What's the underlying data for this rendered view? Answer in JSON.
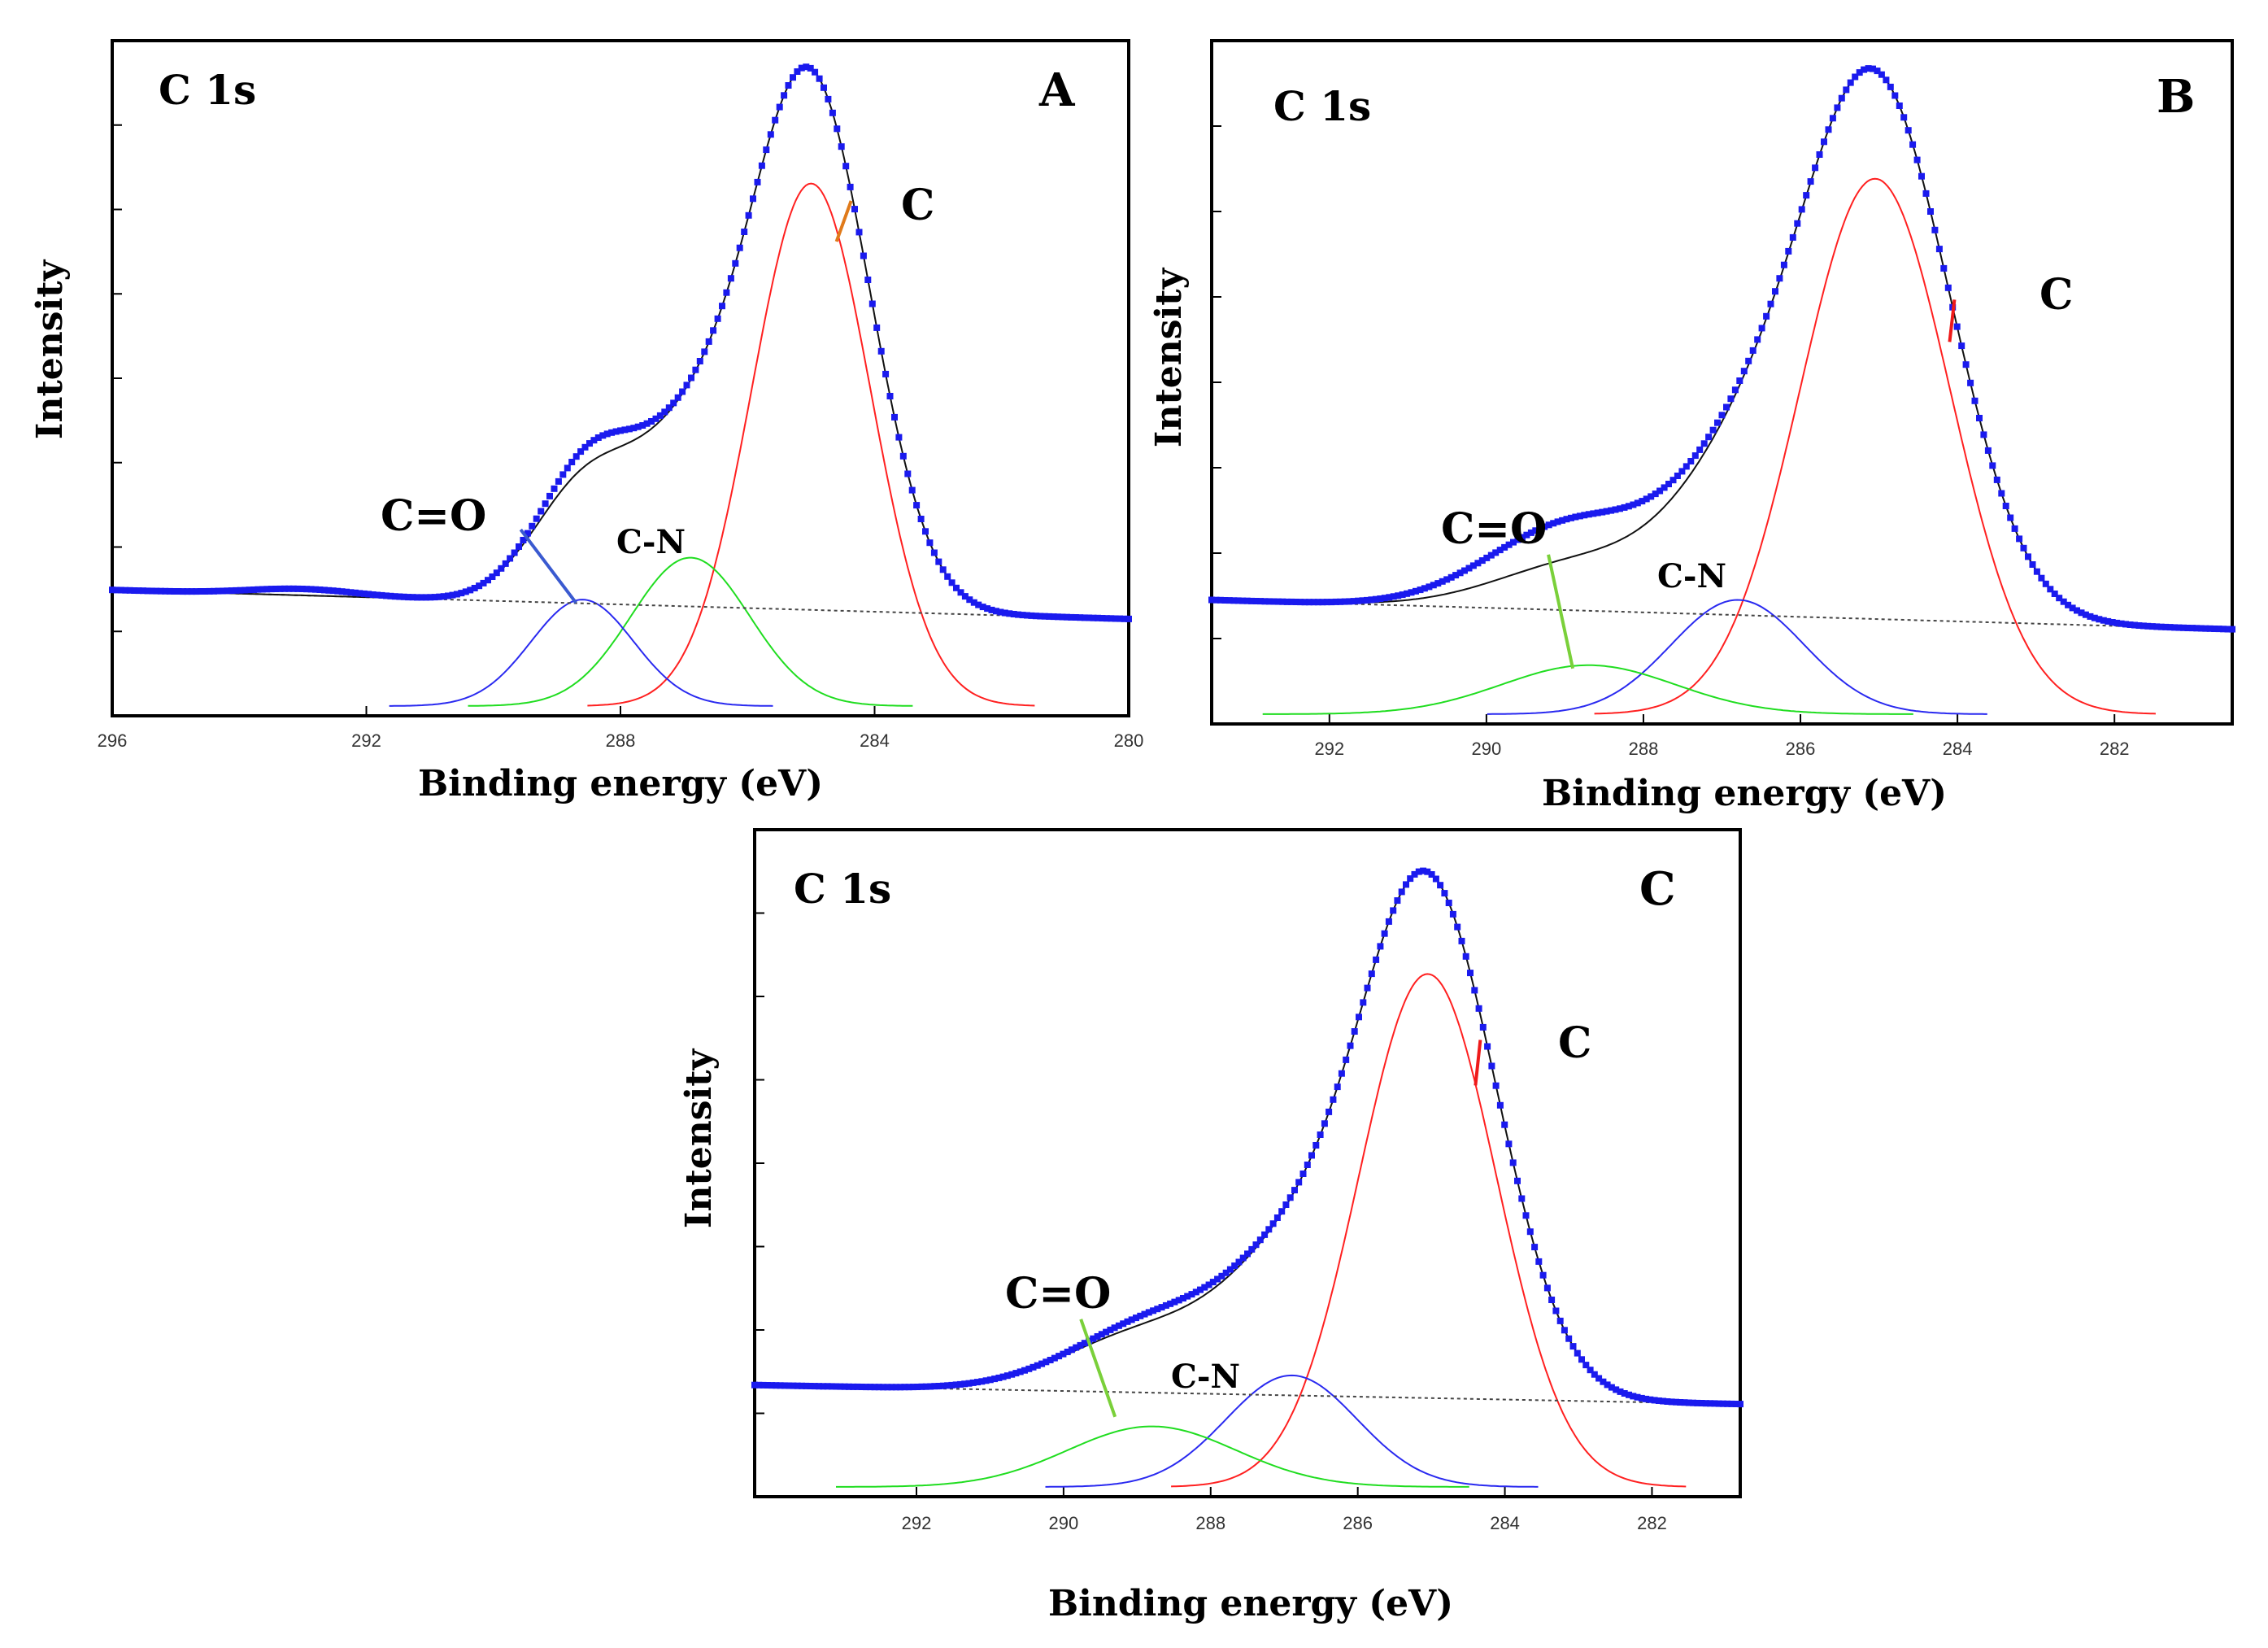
{
  "chart_data": [
    {
      "id": "A",
      "type": "line",
      "panel_label": "A",
      "spectrum_label": "C 1s",
      "xlabel": "Binding energy (eV)",
      "ylabel": "Intensity",
      "xlim": [
        296,
        280
      ],
      "x_ticks": [
        296,
        292,
        288,
        284,
        280
      ],
      "ylim": [
        0,
        1
      ],
      "background": {
        "start": 0.18,
        "end": 0.135
      },
      "baseline_high_x": 287,
      "exp_shoulder": {
        "center": 288.4,
        "width": 0.9,
        "amp": 0.03
      },
      "exp_bump": {
        "center": 293.0,
        "width": 1.2,
        "amp": 0.01
      },
      "series": [
        {
          "name": "C",
          "color": "#ff2020",
          "center": 285.0,
          "fwhm": 2.2,
          "amp": 0.81
        },
        {
          "name": "C-N",
          "color": "#20dd20",
          "center": 286.9,
          "fwhm": 2.2,
          "amp": 0.23
        },
        {
          "name": "C=O",
          "color": "#2a2af0",
          "center": 288.6,
          "fwhm": 1.9,
          "amp": 0.165
        }
      ],
      "annotations": [
        {
          "text": "C",
          "color": "#e07a1a",
          "x": 284.6,
          "y": 0.72
        },
        {
          "text": "C-N",
          "color": "#20dd20",
          "x": 286.9,
          "y": 0.23
        },
        {
          "text": "C=O",
          "color": "#3a5ad0",
          "x": 288.7,
          "y": 0.16
        }
      ]
    },
    {
      "id": "B",
      "type": "line",
      "panel_label": "B",
      "spectrum_label": "C 1s",
      "xlabel": "Binding energy (eV)",
      "ylabel": "Intensity",
      "xlim": [
        293.5,
        280.5
      ],
      "x_ticks": [
        292,
        290,
        288,
        286,
        284,
        282
      ],
      "ylim": [
        0,
        1
      ],
      "background": {
        "start": 0.175,
        "end": 0.13
      },
      "baseline_high_x": 286,
      "exp_shoulder": {
        "center": 289.0,
        "width": 1.5,
        "amp": 0.06
      },
      "exp_bump": {
        "center": 292.5,
        "width": 1.5,
        "amp": 0.0
      },
      "series": [
        {
          "name": "C",
          "color": "#ff2020",
          "center": 285.05,
          "fwhm": 2.25,
          "amp": 0.82
        },
        {
          "name": "C-N",
          "color": "#2a2af0",
          "center": 286.8,
          "fwhm": 2.0,
          "amp": 0.175
        },
        {
          "name": "C=O",
          "color": "#20dd20",
          "center": 288.7,
          "fwhm": 2.6,
          "amp": 0.075
        }
      ],
      "annotations": [
        {
          "text": "C",
          "color": "#ee1a1a",
          "x": 284.1,
          "y": 0.57
        },
        {
          "text": "C-N",
          "color": "#2a2af0",
          "x": 286.8,
          "y": 0.175
        },
        {
          "text": "C=O",
          "color": "#7ad03a",
          "x": 288.9,
          "y": 0.07
        }
      ]
    },
    {
      "id": "C",
      "type": "line",
      "panel_label": "C",
      "spectrum_label": "C 1s",
      "xlabel": "Binding energy (eV)",
      "ylabel": "Intensity",
      "xlim": [
        294.2,
        280.8
      ],
      "x_ticks": [
        292,
        290,
        288,
        286,
        284,
        282
      ],
      "ylim": [
        0,
        1
      ],
      "background": {
        "start": 0.16,
        "end": 0.13
      },
      "baseline_high_x": 286,
      "exp_shoulder": {
        "center": 288.6,
        "width": 1.1,
        "amp": 0.015
      },
      "exp_bump": {
        "center": 292.5,
        "width": 1.5,
        "amp": 0.0
      },
      "series": [
        {
          "name": "C",
          "color": "#ff2020",
          "center": 285.05,
          "fwhm": 2.2,
          "amp": 0.805
        },
        {
          "name": "C-N",
          "color": "#2a2af0",
          "center": 286.9,
          "fwhm": 2.1,
          "amp": 0.175
        },
        {
          "name": "C=O",
          "color": "#20dd20",
          "center": 288.8,
          "fwhm": 2.7,
          "amp": 0.095
        }
      ],
      "annotations": [
        {
          "text": "C",
          "color": "#ee1a1a",
          "x": 284.4,
          "y": 0.63
        },
        {
          "text": "C-N",
          "color": "#2a2af0",
          "x": 287.0,
          "y": 0.17
        },
        {
          "text": "C=O",
          "color": "#7ad03a",
          "x": 289.3,
          "y": 0.11
        }
      ]
    }
  ]
}
